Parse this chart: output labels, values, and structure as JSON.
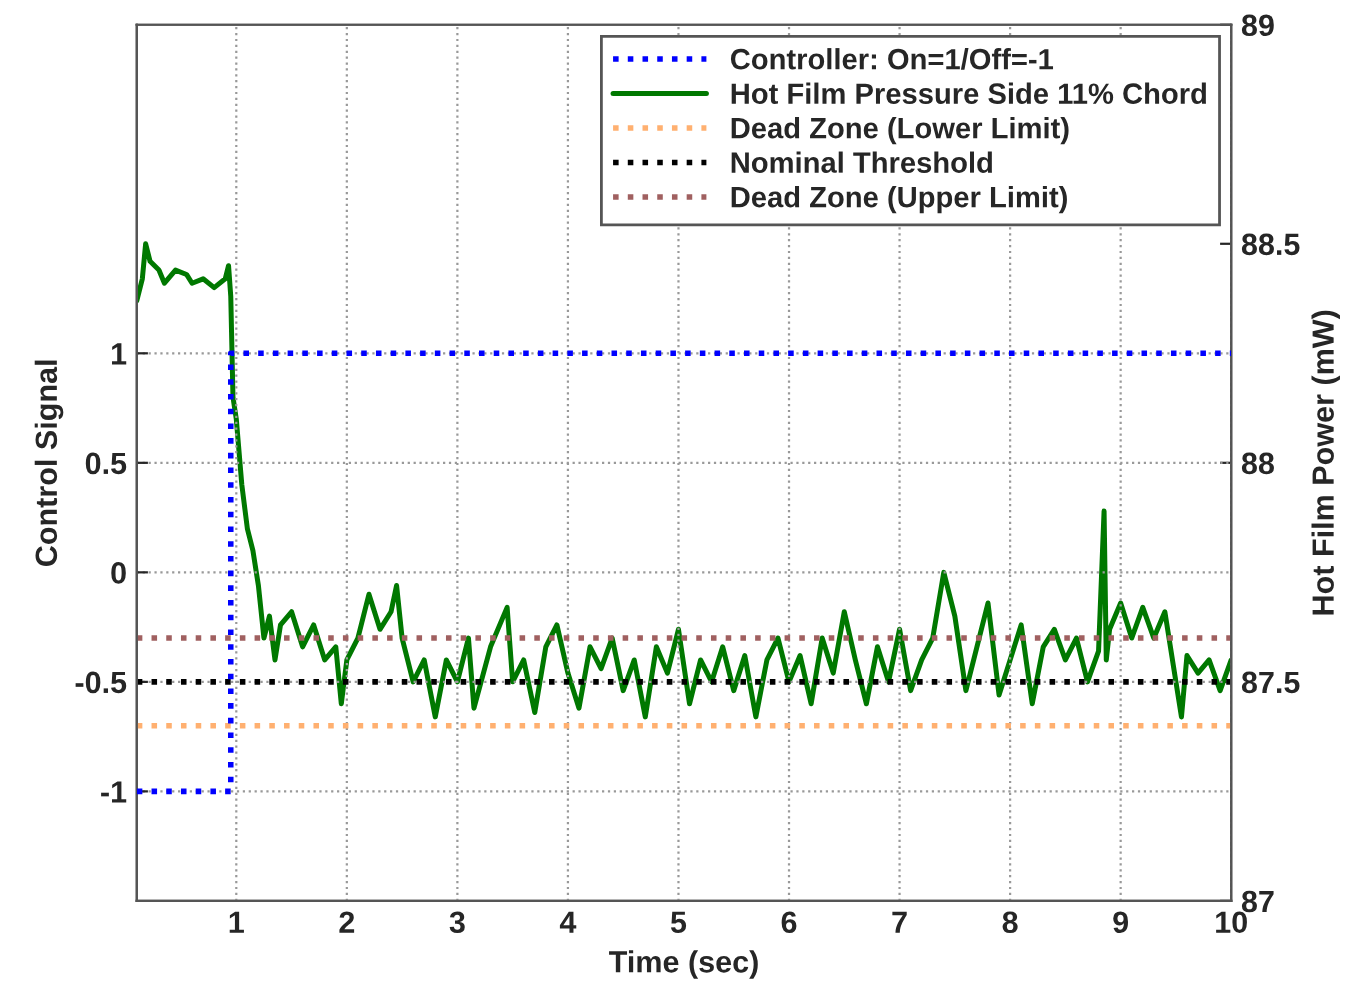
{
  "chart_data": {
    "type": "line",
    "xlabel": "Time (sec)",
    "ylabel": "Control Signal",
    "y2label": "Hot Film Power (mW)",
    "xlim": [
      0.1,
      10
    ],
    "xticks": [
      1,
      2,
      3,
      4,
      5,
      6,
      7,
      8,
      9,
      10
    ],
    "ylim": [
      -1.5,
      2.5
    ],
    "yticks": [
      -1,
      -0.5,
      0,
      0.5,
      1
    ],
    "y2lim": [
      87,
      89
    ],
    "y2ticks": [
      87,
      87.5,
      88,
      88.5,
      89
    ],
    "grid": true,
    "legend": "top right",
    "series": [
      {
        "name": "Controller: On=1/Off=-1",
        "color": "#0000ff",
        "line_style": "dotted",
        "x": [
          0.1,
          0.95,
          0.95,
          10
        ],
        "values": [
          -1,
          -1,
          1,
          1
        ]
      },
      {
        "name": "Hot Film Pressure Side 11% Chord",
        "color": "#007800",
        "line_style": "solid",
        "axis": "y2",
        "x": [
          0.1,
          0.15,
          0.18,
          0.22,
          0.3,
          0.35,
          0.45,
          0.55,
          0.6,
          0.7,
          0.8,
          0.9,
          0.93,
          0.95,
          0.97,
          1.0,
          1.05,
          1.1,
          1.15,
          1.2,
          1.25,
          1.3,
          1.35,
          1.4,
          1.5,
          1.6,
          1.7,
          1.8,
          1.9,
          1.95,
          2.0,
          2.1,
          2.2,
          2.3,
          2.4,
          2.45,
          2.5,
          2.6,
          2.7,
          2.8,
          2.9,
          3.0,
          3.1,
          3.15,
          3.3,
          3.45,
          3.5,
          3.6,
          3.7,
          3.8,
          3.9,
          4.0,
          4.1,
          4.2,
          4.3,
          4.4,
          4.5,
          4.6,
          4.7,
          4.8,
          4.9,
          5.0,
          5.1,
          5.2,
          5.3,
          5.4,
          5.5,
          5.6,
          5.7,
          5.8,
          5.9,
          6.0,
          6.1,
          6.2,
          6.3,
          6.4,
          6.5,
          6.6,
          6.7,
          6.8,
          6.9,
          7.0,
          7.1,
          7.2,
          7.3,
          7.4,
          7.5,
          7.6,
          7.7,
          7.8,
          7.9,
          8.0,
          8.1,
          8.2,
          8.3,
          8.4,
          8.5,
          8.6,
          8.7,
          8.8,
          8.85,
          8.87,
          8.9,
          9.0,
          9.1,
          9.2,
          9.3,
          9.4,
          9.5,
          9.55,
          9.6,
          9.7,
          9.8,
          9.9,
          10.0
        ],
        "values": [
          88.37,
          88.42,
          88.5,
          88.46,
          88.44,
          88.41,
          88.44,
          88.43,
          88.41,
          88.42,
          88.4,
          88.42,
          88.45,
          88.38,
          88.15,
          88.1,
          87.95,
          87.85,
          87.8,
          87.72,
          87.6,
          87.65,
          87.55,
          87.63,
          87.66,
          87.58,
          87.63,
          87.55,
          87.58,
          87.45,
          87.55,
          87.6,
          87.7,
          87.62,
          87.66,
          87.72,
          87.6,
          87.5,
          87.55,
          87.42,
          87.55,
          87.5,
          87.6,
          87.44,
          87.58,
          87.67,
          87.5,
          87.55,
          87.43,
          87.58,
          87.63,
          87.52,
          87.44,
          87.58,
          87.53,
          87.6,
          87.48,
          87.55,
          87.42,
          87.58,
          87.52,
          87.62,
          87.45,
          87.55,
          87.5,
          87.58,
          87.48,
          87.56,
          87.42,
          87.55,
          87.6,
          87.5,
          87.56,
          87.45,
          87.6,
          87.52,
          87.66,
          87.55,
          87.45,
          87.58,
          87.5,
          87.62,
          87.48,
          87.55,
          87.6,
          87.75,
          87.65,
          87.48,
          87.58,
          87.68,
          87.47,
          87.55,
          87.63,
          87.45,
          87.58,
          87.62,
          87.55,
          87.6,
          87.5,
          87.57,
          87.89,
          87.55,
          87.62,
          87.68,
          87.6,
          87.67,
          87.6,
          87.66,
          87.5,
          87.42,
          87.56,
          87.52,
          87.55,
          87.48,
          87.55
        ]
      }
    ],
    "ref_lines": [
      {
        "axis": "y",
        "value": -0.7,
        "label": "Dead Zone (Lower Limit)",
        "color": "#ffb070",
        "line_style": "dotted"
      },
      {
        "axis": "y",
        "value": -0.5,
        "label": "Nominal Threshold",
        "color": "#000000",
        "line_style": "dotted"
      },
      {
        "axis": "y",
        "value": -0.3,
        "label": "Dead Zone (Upper Limit)",
        "color": "#a06060",
        "line_style": "dotted"
      }
    ]
  }
}
